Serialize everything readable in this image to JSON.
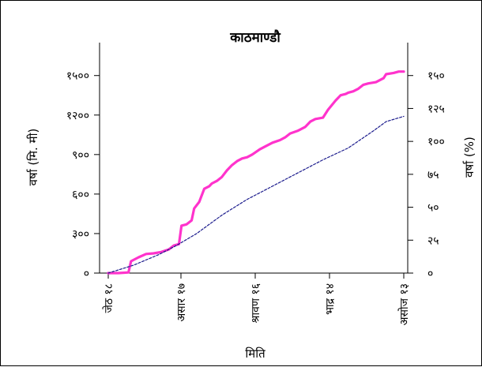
{
  "chart_data": {
    "type": "line",
    "title": "काठमाण्डौ",
    "xlabel": "मिति",
    "ylabel_left": "वर्षा (मि. मी)",
    "ylabel_right": "वर्षा (%)",
    "x_ticks": [
      "जेठ १८",
      "असार १७",
      "श्रावण १६",
      "भाद्र १४",
      "असोज १३"
    ],
    "y_left_ticks": [
      "०",
      "३००",
      "६००",
      "९००",
      "१२००",
      "१५००"
    ],
    "y_left_values": [
      0,
      300,
      600,
      900,
      1200,
      1500
    ],
    "y_left_range": [
      0,
      1500
    ],
    "y_right_ticks": [
      "०",
      "२५",
      "५०",
      "७५",
      "१००",
      "१२५",
      "१५०"
    ],
    "y_right_values": [
      0,
      25,
      50,
      75,
      100,
      125,
      150
    ],
    "y_right_range": [
      0,
      150
    ],
    "x_day_range": [
      0,
      117
    ],
    "series": [
      {
        "color": "#ff33cc",
        "style": "solid",
        "axis": "left",
        "x": [
          0,
          4,
          8,
          9,
          12,
          15,
          18,
          21,
          24,
          26,
          28,
          29,
          31,
          33,
          34,
          36,
          38,
          40,
          41,
          43,
          45,
          47,
          49,
          51,
          53,
          55,
          57,
          60,
          62,
          65,
          68,
          70,
          72,
          75,
          78,
          80,
          82,
          85,
          87,
          90,
          92,
          94,
          95,
          97,
          99,
          101,
          103,
          106,
          109,
          110,
          113,
          115,
          117
        ],
        "y": [
          0,
          0,
          5,
          90,
          120,
          145,
          150,
          160,
          180,
          210,
          220,
          360,
          370,
          400,
          490,
          540,
          640,
          660,
          680,
          700,
          730,
          780,
          820,
          850,
          870,
          880,
          900,
          940,
          960,
          990,
          1010,
          1030,
          1060,
          1080,
          1110,
          1150,
          1170,
          1180,
          1240,
          1310,
          1350,
          1360,
          1370,
          1380,
          1400,
          1430,
          1440,
          1450,
          1480,
          1510,
          1520,
          1530,
          1530
        ]
      },
      {
        "color": "#1a1a8c",
        "style": "dashed",
        "axis": "left",
        "x": [
          0,
          10,
          20,
          27,
          35,
          45,
          55,
          65,
          75,
          85,
          95,
          105,
          110,
          117
        ],
        "y": [
          0,
          60,
          140,
          210,
          300,
          440,
          560,
          660,
          760,
          860,
          950,
          1080,
          1150,
          1190
        ]
      }
    ]
  }
}
